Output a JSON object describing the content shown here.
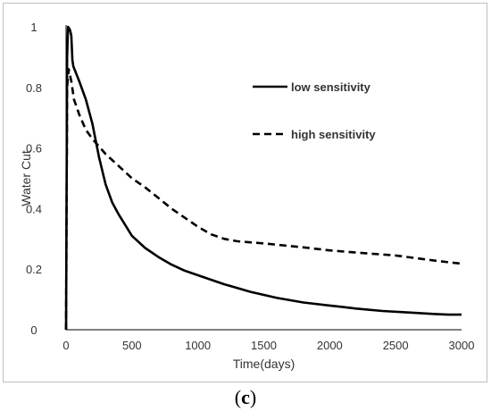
{
  "chart_data": {
    "type": "line",
    "xlabel": "Time(days)",
    "ylabel": "Water Cut",
    "xlim": [
      0,
      3000
    ],
    "ylim": [
      0,
      1
    ],
    "xticks": [
      0,
      500,
      1000,
      1500,
      2000,
      2500,
      3000
    ],
    "yticks": [
      0,
      0.2,
      0.4,
      0.6,
      0.8,
      1
    ],
    "ytick_labels": [
      "0",
      "0.2",
      "0.4",
      "0.6",
      "0.8",
      "1"
    ],
    "grid": false,
    "legend_position": "top-right",
    "series": [
      {
        "name": "low sensitivity",
        "style": "solid",
        "points": [
          [
            0,
            0.0
          ],
          [
            8,
            0.9
          ],
          [
            15,
            1.0
          ],
          [
            30,
            0.99
          ],
          [
            40,
            0.97
          ],
          [
            48,
            0.89
          ],
          [
            55,
            0.87
          ],
          [
            100,
            0.82
          ],
          [
            150,
            0.76
          ],
          [
            200,
            0.68
          ],
          [
            250,
            0.57
          ],
          [
            300,
            0.48
          ],
          [
            350,
            0.42
          ],
          [
            400,
            0.38
          ],
          [
            500,
            0.31
          ],
          [
            600,
            0.27
          ],
          [
            700,
            0.24
          ],
          [
            800,
            0.215
          ],
          [
            900,
            0.195
          ],
          [
            1000,
            0.18
          ],
          [
            1200,
            0.15
          ],
          [
            1400,
            0.125
          ],
          [
            1600,
            0.105
          ],
          [
            1800,
            0.09
          ],
          [
            2000,
            0.08
          ],
          [
            2200,
            0.07
          ],
          [
            2400,
            0.062
          ],
          [
            2600,
            0.057
          ],
          [
            2800,
            0.052
          ],
          [
            2900,
            0.05
          ],
          [
            3000,
            0.05
          ]
        ]
      },
      {
        "name": "high sensitivity",
        "style": "dashed",
        "points": [
          [
            0,
            0.0
          ],
          [
            8,
            0.8
          ],
          [
            20,
            0.86
          ],
          [
            40,
            0.82
          ],
          [
            60,
            0.76
          ],
          [
            100,
            0.71
          ],
          [
            150,
            0.66
          ],
          [
            200,
            0.63
          ],
          [
            300,
            0.58
          ],
          [
            400,
            0.54
          ],
          [
            500,
            0.5
          ],
          [
            600,
            0.47
          ],
          [
            700,
            0.435
          ],
          [
            800,
            0.4
          ],
          [
            900,
            0.37
          ],
          [
            1000,
            0.34
          ],
          [
            1100,
            0.315
          ],
          [
            1200,
            0.3
          ],
          [
            1300,
            0.292
          ],
          [
            1500,
            0.285
          ],
          [
            1800,
            0.272
          ],
          [
            2000,
            0.262
          ],
          [
            2200,
            0.255
          ],
          [
            2500,
            0.245
          ],
          [
            2800,
            0.228
          ],
          [
            3000,
            0.218
          ]
        ]
      }
    ]
  },
  "figure": {
    "panel_label": "c"
  }
}
